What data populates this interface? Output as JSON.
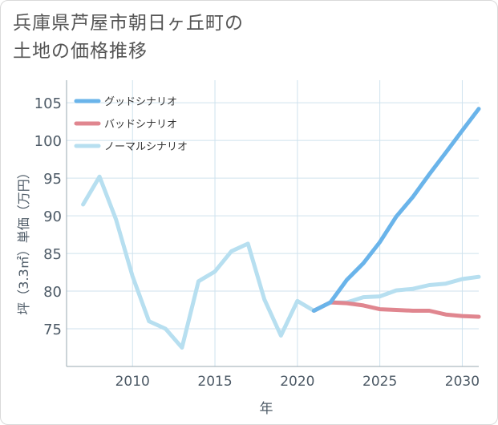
{
  "title_lines": [
    "兵庫県芦屋市朝日ヶ丘町の",
    "土地の価格推移"
  ],
  "chart_data": {
    "type": "line",
    "title": "兵庫県芦屋市朝日ヶ丘町の土地の価格推移",
    "xlabel": "年",
    "ylabel": "坪（3.3㎡）単価（万円）",
    "xlim": [
      2006,
      2031
    ],
    "ylim": [
      70,
      108
    ],
    "xticks": [
      2010,
      2015,
      2020,
      2025,
      2030
    ],
    "yticks": [
      75,
      80,
      85,
      90,
      95,
      100,
      105
    ],
    "grid": true,
    "legend_position": "top-left",
    "series": [
      {
        "name": "グッドシナリオ",
        "color": "#6ab4ea",
        "x": [
          2021,
          2022,
          2023,
          2024,
          2025,
          2026,
          2027,
          2028,
          2029,
          2030,
          2031
        ],
        "values": [
          77.4,
          78.5,
          81.5,
          83.7,
          86.5,
          89.9,
          92.5,
          95.5,
          98.4,
          101.3,
          104.2
        ]
      },
      {
        "name": "バッドシナリオ",
        "color": "#e0868f",
        "x": [
          2021,
          2022,
          2023,
          2024,
          2025,
          2026,
          2027,
          2028,
          2029,
          2030,
          2031
        ],
        "values": [
          77.4,
          78.5,
          78.4,
          78.1,
          77.6,
          77.5,
          77.4,
          77.4,
          76.9,
          76.7,
          76.6
        ]
      },
      {
        "name": "ノーマルシナリオ",
        "color": "#b7dff0",
        "x": [
          2007,
          2008,
          2009,
          2010,
          2011,
          2012,
          2013,
          2014,
          2015,
          2016,
          2017,
          2018,
          2019,
          2020,
          2021,
          2022,
          2023,
          2024,
          2025,
          2026,
          2027,
          2028,
          2029,
          2030,
          2031
        ],
        "values": [
          91.5,
          95.2,
          89.5,
          82.0,
          76.0,
          75.0,
          72.5,
          81.3,
          82.6,
          85.3,
          86.3,
          78.9,
          74.1,
          78.7,
          77.4,
          78.5,
          78.5,
          79.2,
          79.3,
          80.1,
          80.3,
          80.8,
          81.0,
          81.6,
          81.9
        ]
      }
    ]
  }
}
